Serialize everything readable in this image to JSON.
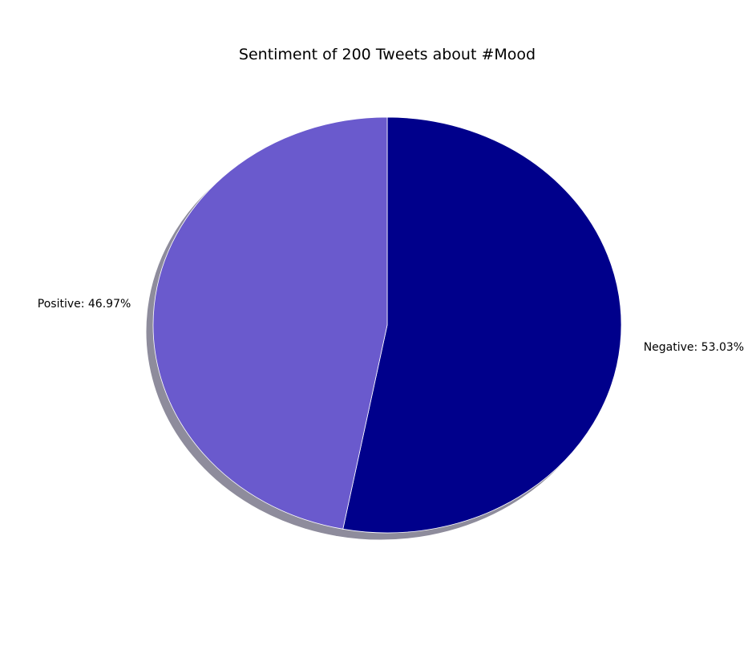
{
  "chart_data": {
    "type": "pie",
    "title": "Sentiment of 200 Tweets about #Mood",
    "start_angle_deg": 90,
    "direction": "clockwise",
    "shadow": true,
    "slices": [
      {
        "label": "Negative: 53.03%",
        "name": "Negative",
        "value": 53.03,
        "color": "#00008B"
      },
      {
        "label": "Positive: 46.97%",
        "name": "Positive",
        "value": 46.97,
        "color": "#6A5ACD"
      }
    ]
  }
}
